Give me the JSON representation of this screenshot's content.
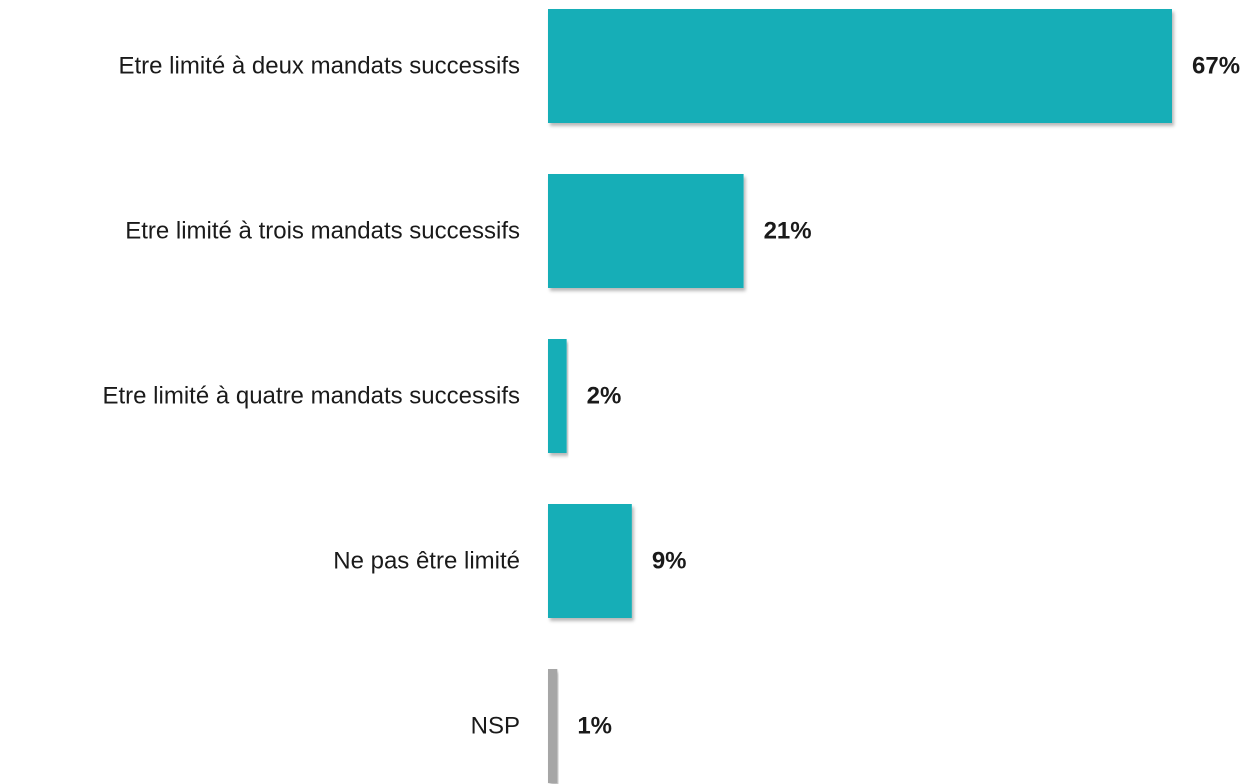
{
  "chart_data": {
    "type": "bar",
    "orientation": "horizontal",
    "categories": [
      "Etre limité à deux mandats successifs",
      "Etre limité à trois mandats successifs",
      "Etre limité à quatre mandats successifs",
      "Ne pas être limité",
      "NSP"
    ],
    "values": [
      67,
      21,
      2,
      9,
      1
    ],
    "value_labels": [
      "67%",
      "21%",
      "2%",
      "9%",
      "1%"
    ],
    "bar_colors": [
      "#14AEB7",
      "#14AEB7",
      "#14AEB7",
      "#14AEB7",
      "#A6A6A6"
    ],
    "title": "",
    "xlabel": "",
    "ylabel": "",
    "xlim": [
      0,
      67
    ],
    "grid": false,
    "legend": "none"
  }
}
